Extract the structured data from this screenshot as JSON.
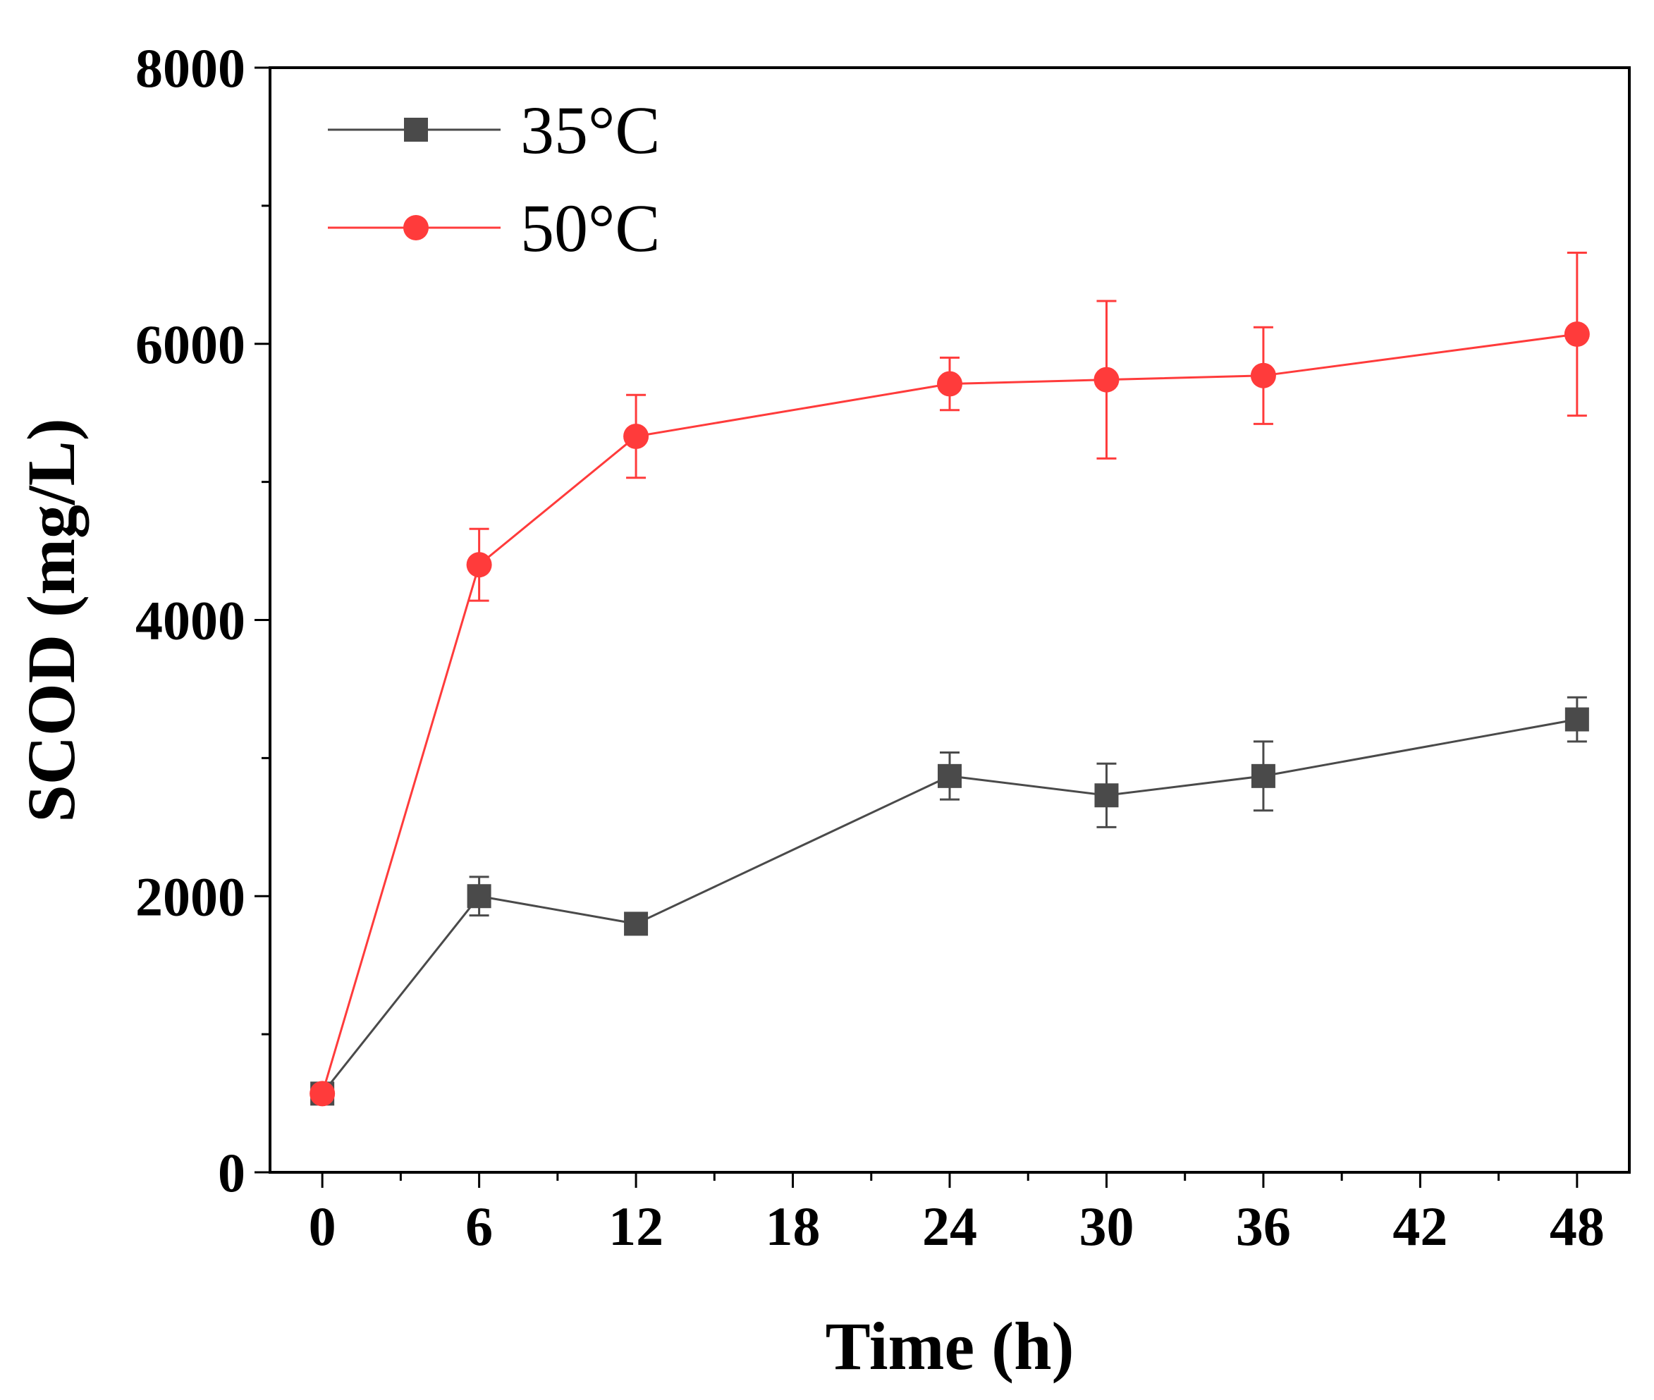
{
  "chart_data": {
    "type": "line",
    "title": "",
    "xlabel": "Time (h)",
    "ylabel": "SCOD (mg/L)",
    "xlim": [
      -2,
      50
    ],
    "ylim": [
      0,
      8000
    ],
    "x_ticks": [
      0,
      6,
      12,
      18,
      24,
      30,
      36,
      42,
      48
    ],
    "x_tick_labels": [
      "0",
      "6",
      "12",
      "18",
      "24",
      "30",
      "36",
      "42",
      "48"
    ],
    "y_ticks": [
      0,
      2000,
      4000,
      6000,
      8000
    ],
    "y_tick_labels": [
      "0",
      "2000",
      "4000",
      "6000",
      "8000"
    ],
    "grid": false,
    "legend_position": "top-left",
    "series": [
      {
        "name": "35°C",
        "color": "#4a4a4a",
        "marker": "square",
        "x": [
          0,
          6,
          12,
          24,
          30,
          36,
          48
        ],
        "values": [
          570,
          2000,
          1800,
          2870,
          2730,
          2870,
          3280
        ],
        "errors": [
          40,
          140,
          60,
          170,
          230,
          250,
          160
        ]
      },
      {
        "name": "50°C",
        "color": "#ff3b3b",
        "marker": "circle",
        "x": [
          0,
          6,
          12,
          24,
          30,
          36,
          48
        ],
        "values": [
          570,
          4400,
          5330,
          5710,
          5740,
          5770,
          6070
        ],
        "errors": [
          40,
          260,
          300,
          190,
          570,
          350,
          590
        ]
      }
    ]
  }
}
